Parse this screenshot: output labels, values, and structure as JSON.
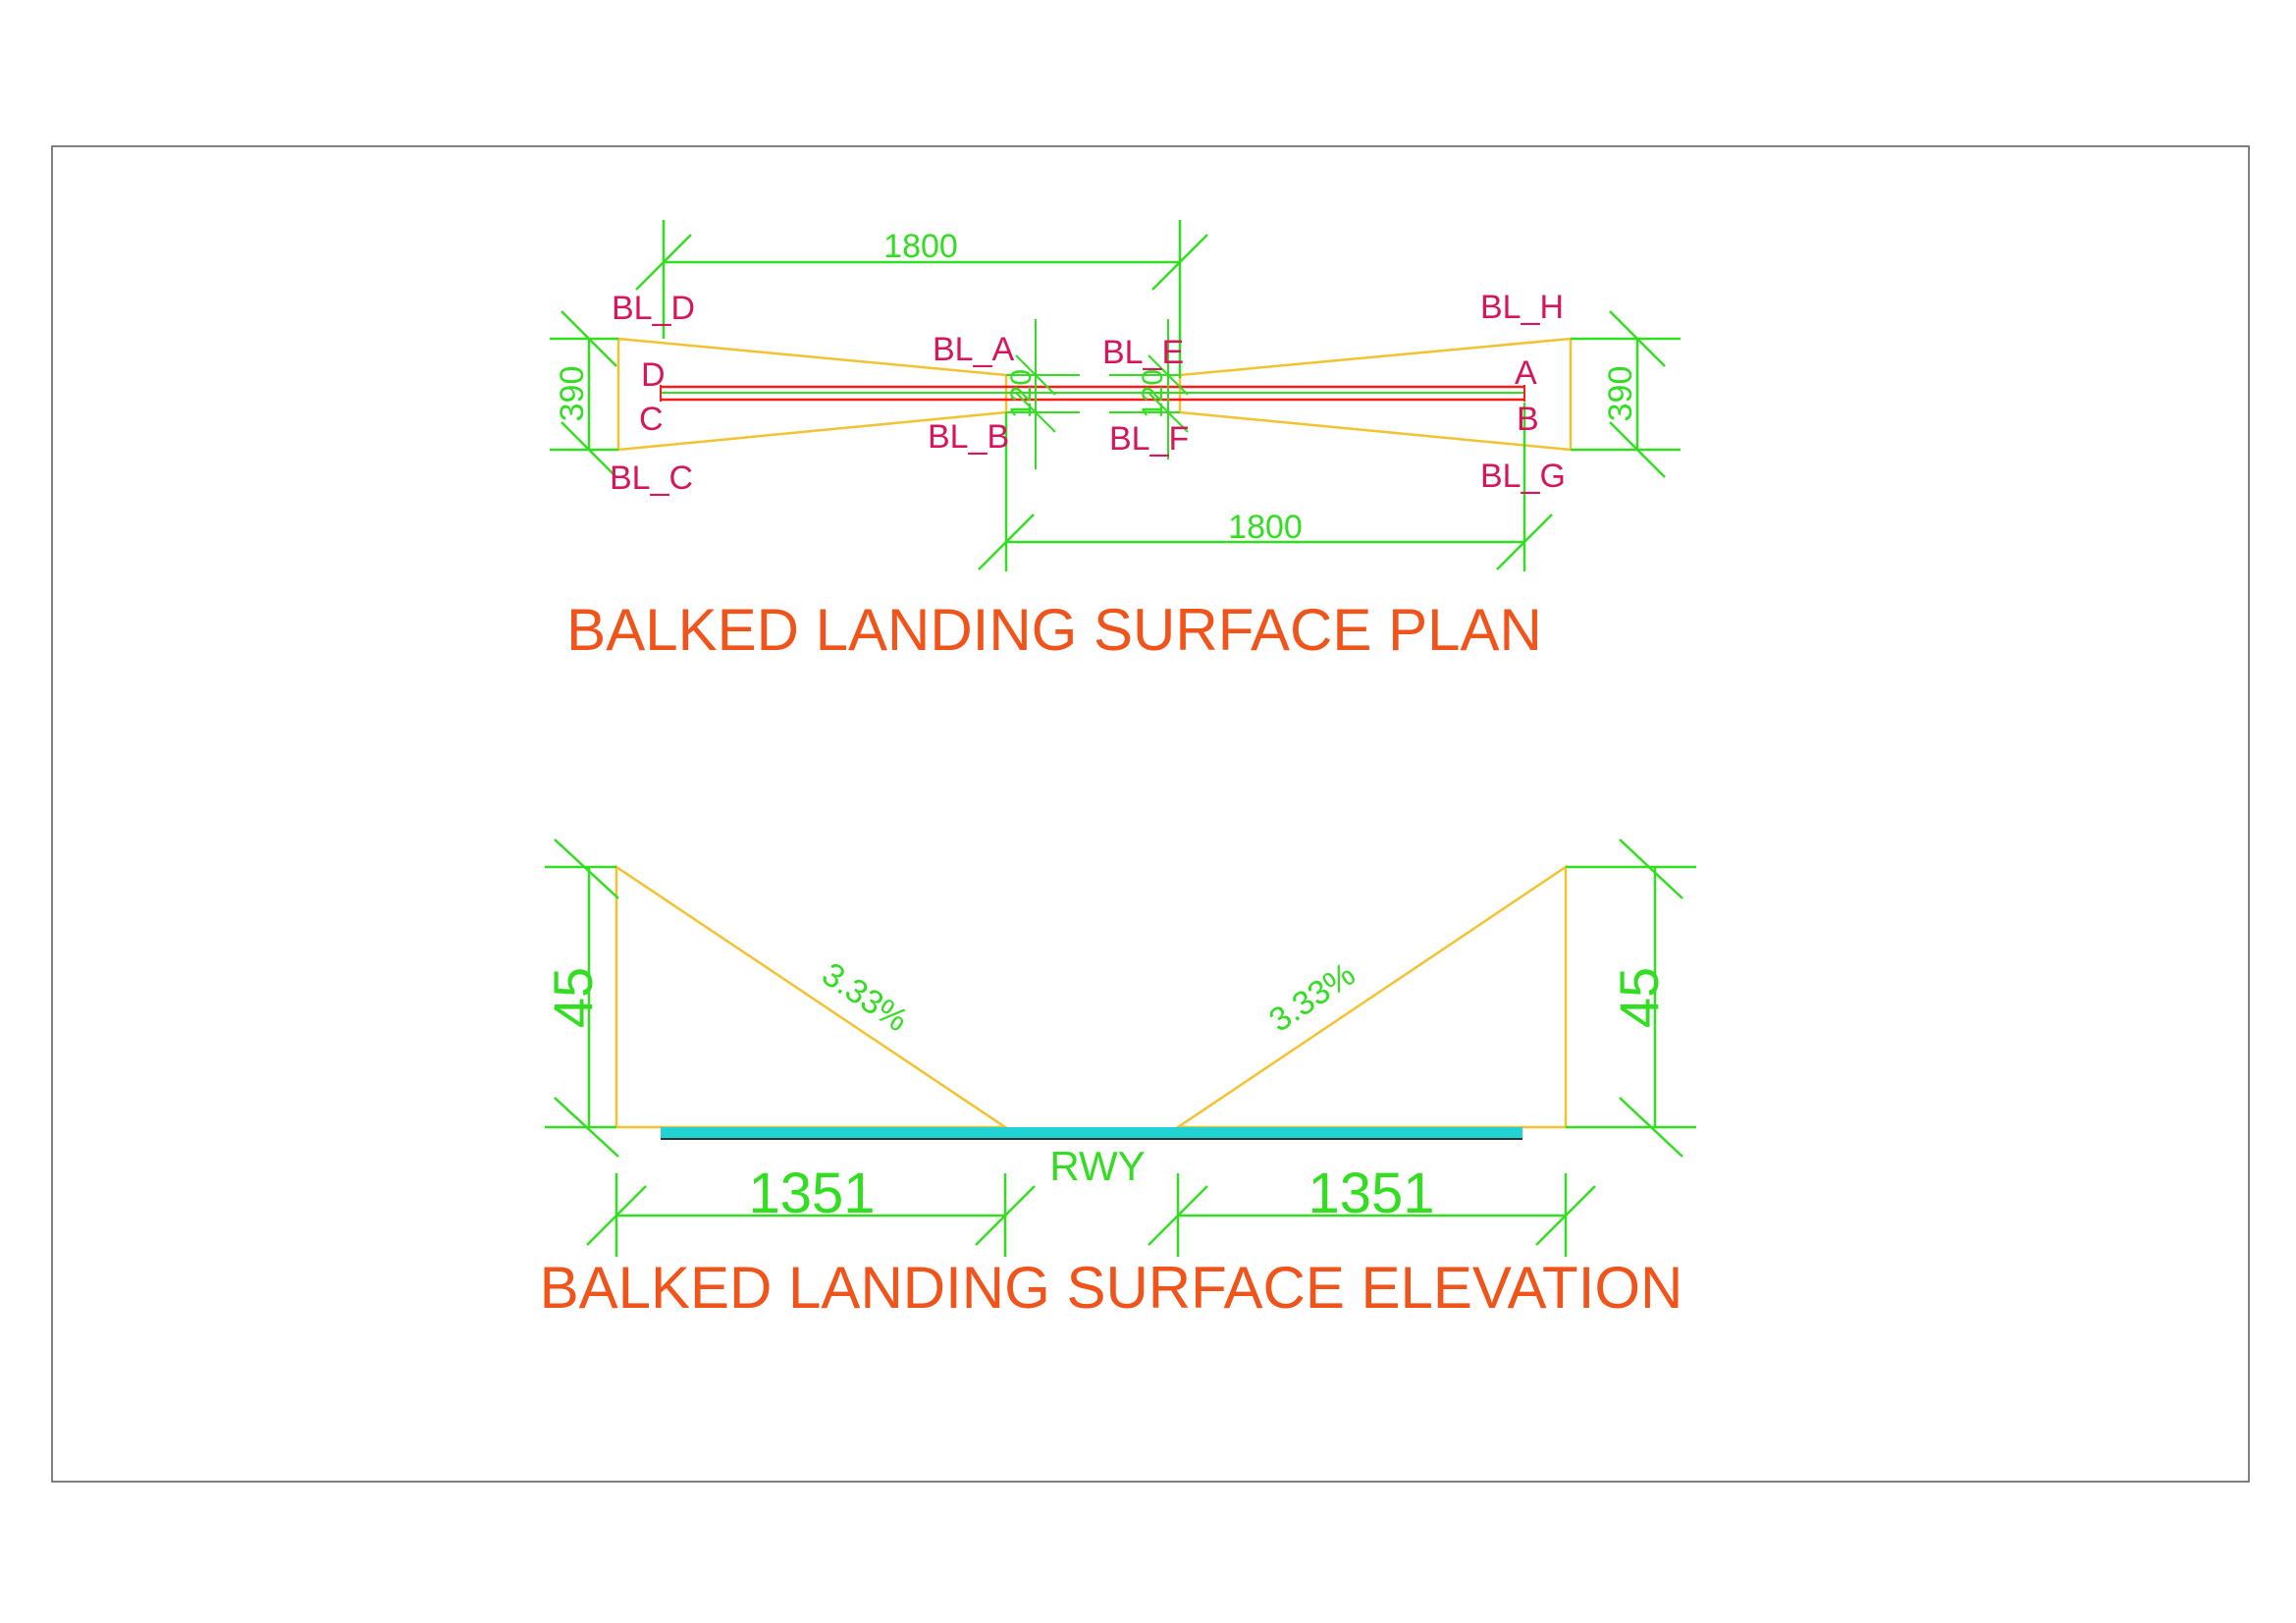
{
  "colors": {
    "dimension": "#33dd22",
    "point_label": "#d6155a",
    "title": "#f0541a",
    "surface_outline": "#f2c230",
    "runway_fill": "#22d3d3",
    "runway_centerline": "#ff1a1a",
    "frame": "#555555"
  },
  "plan": {
    "title": "BALKED LANDING SURFACE PLAN",
    "dim_top": "1800",
    "dim_bottom": "1800",
    "dim_left": "390",
    "dim_right": "390",
    "dim_inner_left": "120",
    "dim_inner_right": "120",
    "labels": {
      "bl_d": "BL_D",
      "bl_c": "BL_C",
      "bl_a": "BL_A",
      "bl_b": "BL_B",
      "bl_e": "BL_E",
      "bl_f": "BL_F",
      "bl_h": "BL_H",
      "bl_g": "BL_G",
      "d": "D",
      "c": "C",
      "a": "A",
      "b": "B"
    }
  },
  "elevation": {
    "title": "BALKED LANDING SURFACE ELEVATION",
    "dim_height_left": "45",
    "dim_height_right": "45",
    "dim_length_left": "1351",
    "dim_length_right": "1351",
    "slope_left": "3.33%",
    "slope_right": "3.33%",
    "runway_label": "RWY"
  }
}
